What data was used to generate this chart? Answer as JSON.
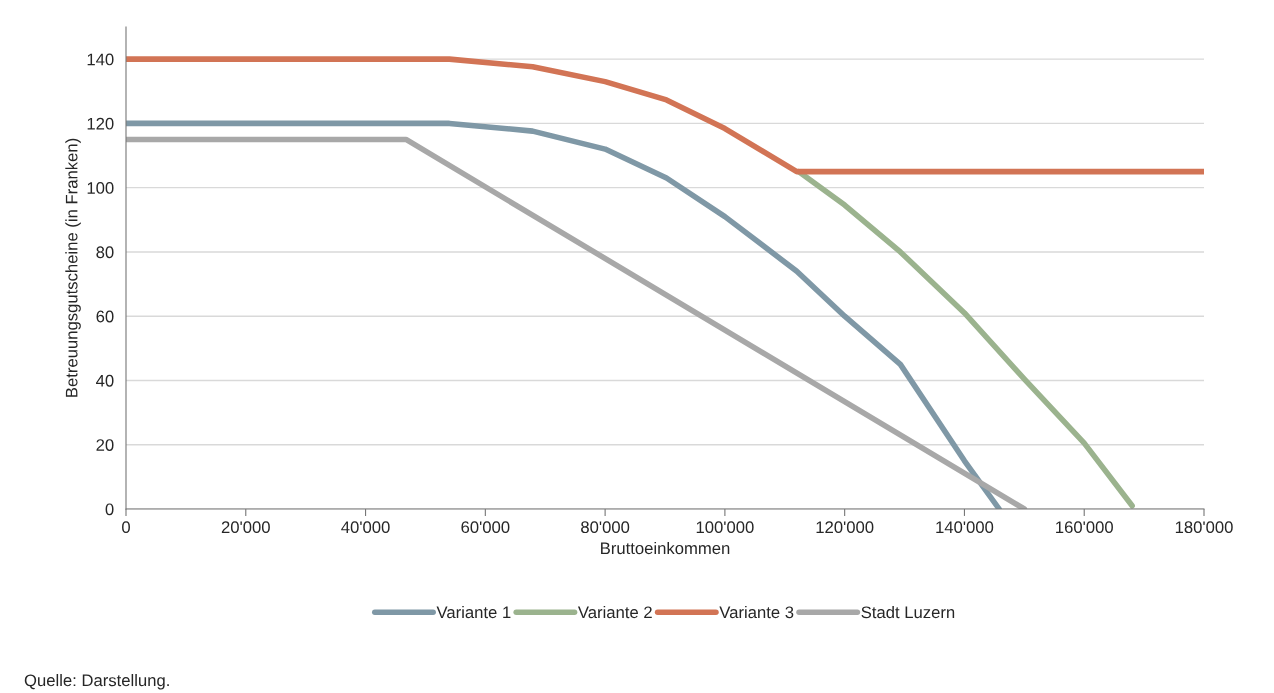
{
  "chart_data": {
    "type": "line",
    "xlabel": "Bruttoeinkommen",
    "ylabel": "Betreuungsgutscheine (in Franken)",
    "annotations": [
      "Quelle: Darstellung."
    ],
    "xlim": [
      0,
      180000
    ],
    "xticks": [
      {
        "value": 0,
        "label": "0"
      },
      {
        "value": 20000,
        "label": "20'000"
      },
      {
        "value": 40000,
        "label": "40'000"
      },
      {
        "value": 60000,
        "label": "60'000"
      },
      {
        "value": 80000,
        "label": "80'000"
      },
      {
        "value": 100000,
        "label": "100'000"
      },
      {
        "value": 120000,
        "label": "120'000"
      },
      {
        "value": 140000,
        "label": "140'000"
      },
      {
        "value": 160000,
        "label": "160'000"
      },
      {
        "value": 180000,
        "label": "180'000"
      }
    ],
    "ylim": [
      0,
      150
    ],
    "yticks": [
      0,
      20,
      40,
      60,
      80,
      100,
      120,
      140
    ],
    "grid": "y",
    "legend": "bottom",
    "marker": "none",
    "line_style": "solid",
    "series": [
      {
        "name": "Variante 1",
        "color": "#7f98a6",
        "x": [
          0,
          54000,
          67900,
          80000,
          90250,
          100000,
          112000,
          120000,
          129300,
          140000,
          145800
        ],
        "values": [
          120,
          120,
          117.6,
          112,
          103,
          91,
          74,
          60,
          45,
          15,
          0
        ]
      },
      {
        "name": "Variante 2",
        "color": "#9bb38e",
        "x": [
          112300,
          120000,
          129300,
          140000,
          150200,
          160000,
          168000
        ],
        "values": [
          105,
          94.6,
          80,
          61,
          40,
          20.5,
          1
        ]
      },
      {
        "name": "Variante 3",
        "color": "#d27455",
        "x": [
          0,
          54000,
          67900,
          80000,
          90250,
          100000,
          112000,
          180000
        ],
        "values": [
          140,
          140,
          137.6,
          133,
          127.3,
          118.4,
          105,
          105
        ]
      },
      {
        "name": "Stadt Luzern",
        "color": "#a8a8a8",
        "x": [
          0,
          46750,
          150000
        ],
        "values": [
          115,
          115,
          0
        ]
      }
    ]
  }
}
